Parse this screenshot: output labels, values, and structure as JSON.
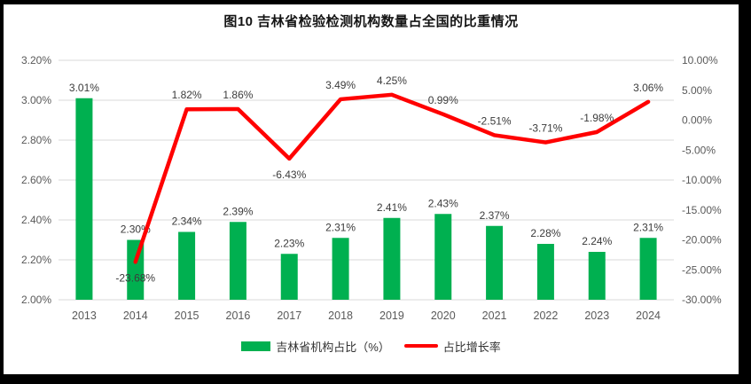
{
  "title": "图10 吉林省检验检测机构数量占全国的比重情况",
  "legend": {
    "items": [
      {
        "label": "吉林省机构占比（%）",
        "marker": "bar-swatch",
        "color": "#00B050"
      },
      {
        "label": "占比增长率",
        "marker": "line-swatch",
        "color": "#FF0000"
      }
    ]
  },
  "colors": {
    "bar": "#00B050",
    "line": "#FF0000",
    "gridline": "#D9D9D9",
    "axis_text": "#595959",
    "data_label": "#3B3B3B",
    "frame_border": "#000000"
  },
  "chart_data": {
    "type": "combo",
    "title": "图10 吉林省检验检测机构数量占全国的比重情况",
    "categories": [
      "2013",
      "2014",
      "2015",
      "2016",
      "2017",
      "2018",
      "2019",
      "2020",
      "2021",
      "2022",
      "2023",
      "2024"
    ],
    "series": [
      {
        "name": "吉林省机构占比（%）",
        "type": "bar",
        "axis": "left",
        "color": "#00B050",
        "values": [
          3.01,
          2.3,
          2.34,
          2.39,
          2.23,
          2.31,
          2.41,
          2.43,
          2.37,
          2.28,
          2.24,
          2.31
        ],
        "labels": [
          "3.01%",
          "2.30%",
          "2.34%",
          "2.39%",
          "2.23%",
          "2.31%",
          "2.41%",
          "2.43%",
          "2.37%",
          "2.28%",
          "2.24%",
          "2.31%"
        ]
      },
      {
        "name": "占比增长率",
        "type": "line",
        "axis": "right",
        "color": "#FF0000",
        "values": [
          null,
          -23.68,
          1.82,
          1.86,
          -6.43,
          3.49,
          4.25,
          0.99,
          -2.51,
          -3.71,
          -1.98,
          3.06
        ],
        "labels": [
          "",
          "-23.68%",
          "1.82%",
          "1.86%",
          "-6.43%",
          "3.49%",
          "4.25%",
          "0.99%",
          "-2.51%",
          "-3.71%",
          "-1.98%",
          "3.06%"
        ],
        "label_side": [
          "",
          "below",
          "above",
          "above",
          "below",
          "above",
          "above",
          "above",
          "above",
          "above",
          "above",
          "above"
        ]
      }
    ],
    "left_axis": {
      "min": 2.0,
      "max": 3.2,
      "step": 0.2,
      "ticks": [
        "3.20%",
        "3.00%",
        "2.80%",
        "2.60%",
        "2.40%",
        "2.20%",
        "2.00%"
      ]
    },
    "right_axis": {
      "min": -30,
      "max": 10,
      "step": 5,
      "ticks": [
        "10.00%",
        "5.00%",
        "0.00%",
        "-5.00%",
        "-10.00%",
        "-15.00%",
        "-20.00%",
        "-25.00%",
        "-30.00%"
      ]
    },
    "grid": true,
    "legend_position": "bottom",
    "xlabel": "",
    "ylabel": ""
  }
}
